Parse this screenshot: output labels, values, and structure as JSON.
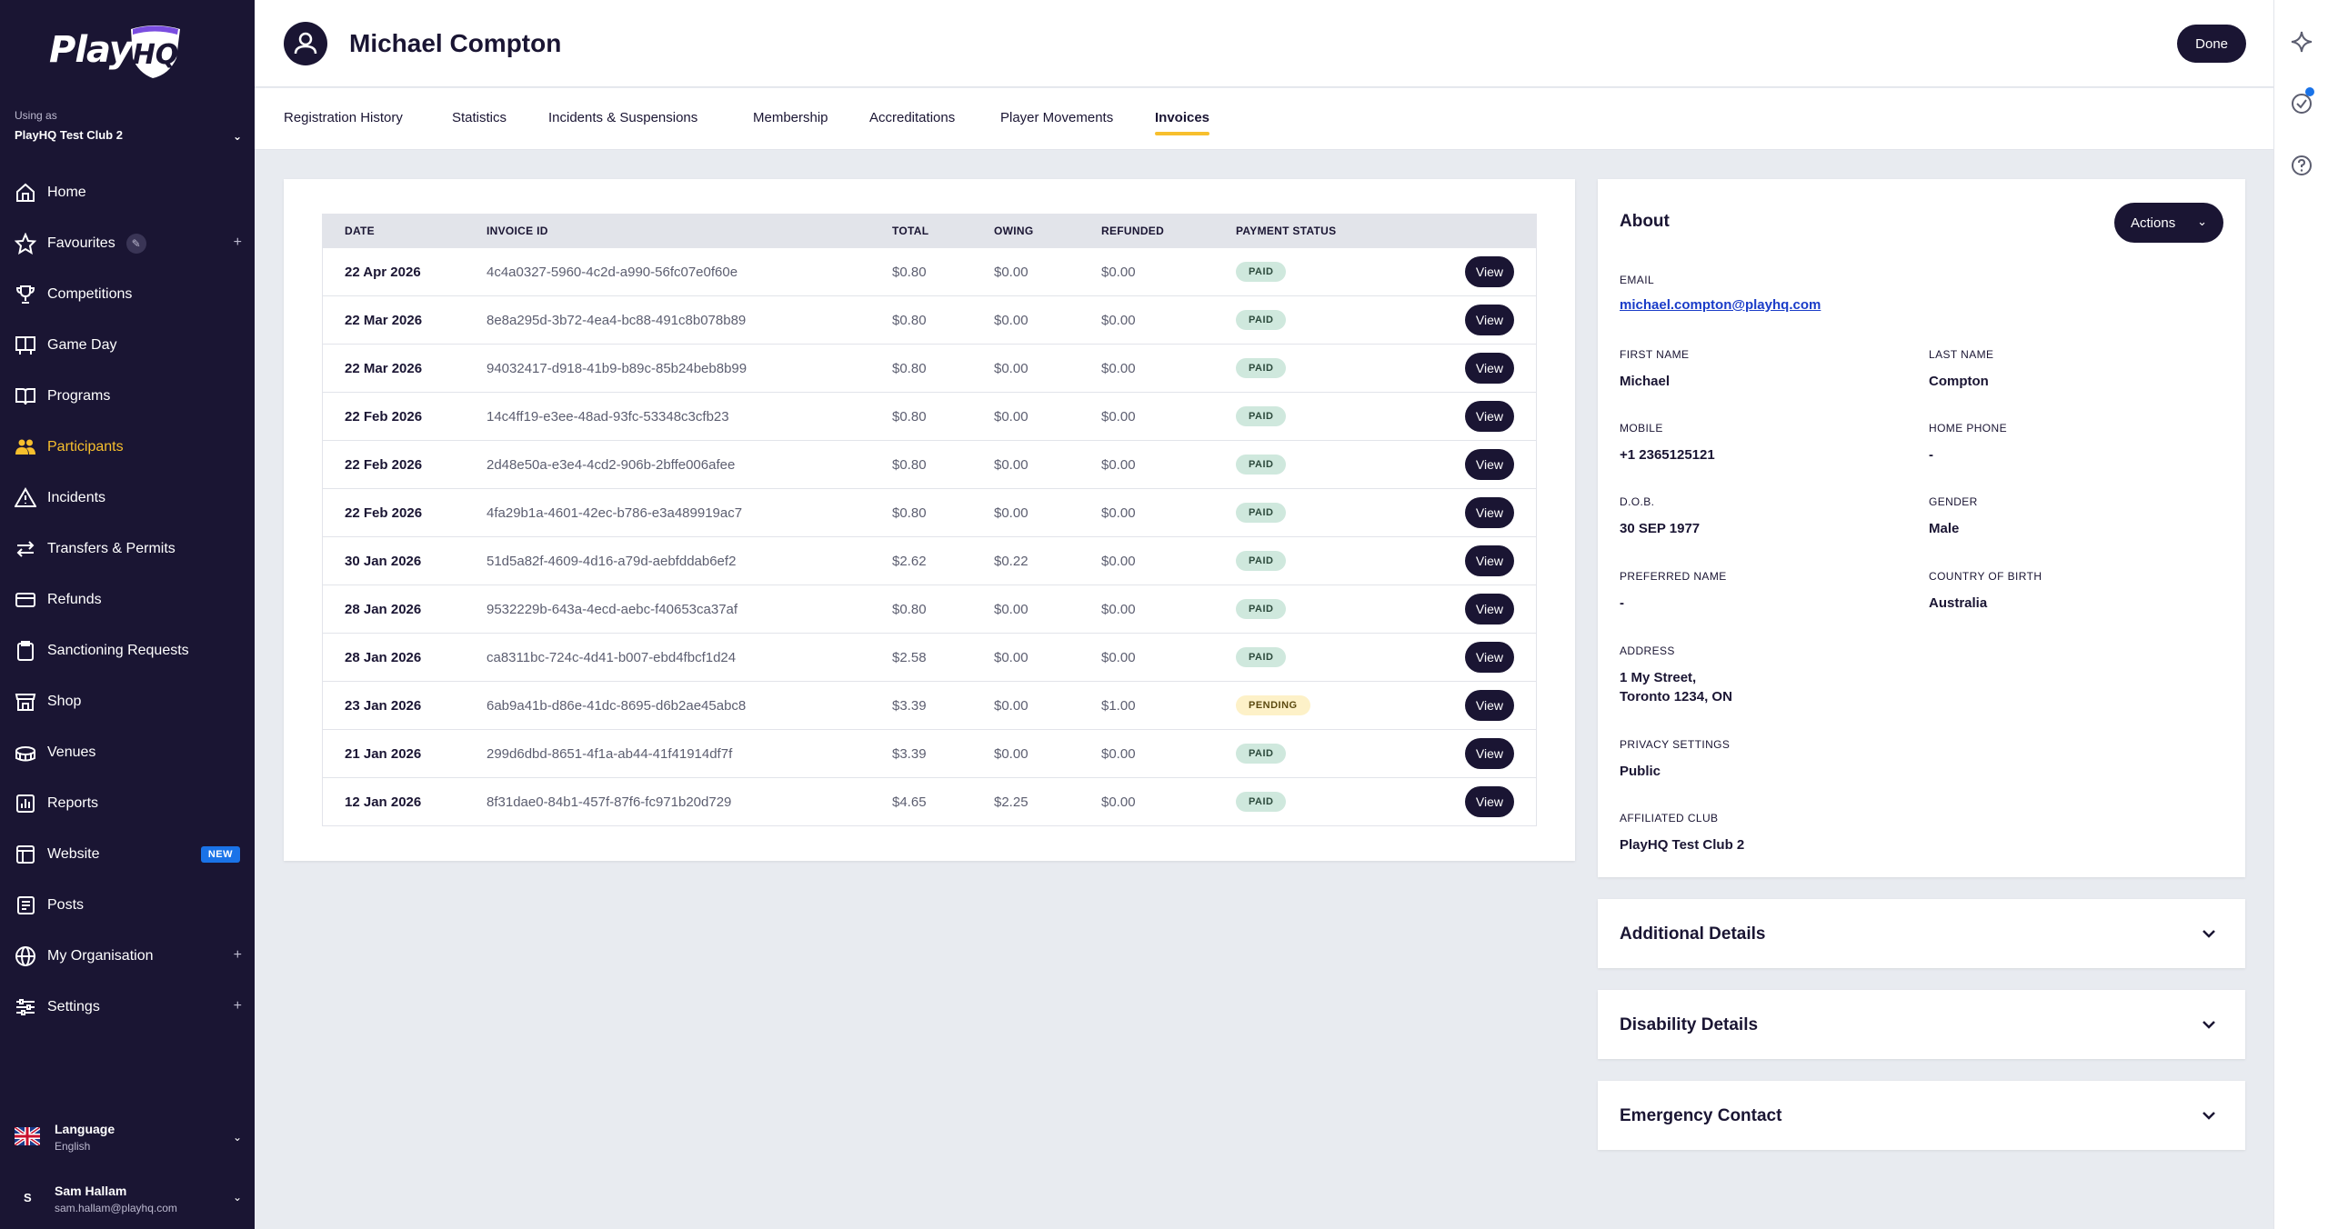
{
  "sidebar": {
    "logo_text": "Play",
    "logo_badge": "HQ",
    "using_as_label": "Using as",
    "club": "PlayHQ Test Club 2",
    "items": [
      {
        "label": "Home",
        "icon": "home-icon"
      },
      {
        "label": "Favourites",
        "icon": "star-icon"
      },
      {
        "label": "Competitions",
        "icon": "trophy-icon"
      },
      {
        "label": "Game Day",
        "icon": "scoreboard-icon"
      },
      {
        "label": "Programs",
        "icon": "book-icon"
      },
      {
        "label": "Participants",
        "icon": "people-icon"
      },
      {
        "label": "Incidents",
        "icon": "warning-icon"
      },
      {
        "label": "Transfers & Permits",
        "icon": "transfer-icon"
      },
      {
        "label": "Refunds",
        "icon": "card-icon"
      },
      {
        "label": "Sanctioning Requests",
        "icon": "clipboard-icon"
      },
      {
        "label": "Shop",
        "icon": "shop-icon"
      },
      {
        "label": "Venues",
        "icon": "stadium-icon"
      },
      {
        "label": "Reports",
        "icon": "reports-icon"
      },
      {
        "label": "Website",
        "icon": "website-icon",
        "badge": "NEW"
      },
      {
        "label": "Posts",
        "icon": "posts-icon"
      },
      {
        "label": "My Organisation",
        "icon": "globe-icon"
      },
      {
        "label": "Settings",
        "icon": "sliders-icon"
      }
    ],
    "language_label": "Language",
    "language_value": "English",
    "user_initial": "S",
    "user_name": "Sam Hallam",
    "user_email": "sam.hallam@playhq.com"
  },
  "header": {
    "title": "Michael Compton",
    "done_label": "Done"
  },
  "tabs": [
    "Registration History",
    "Statistics",
    "Incidents & Suspensions",
    "Membership",
    "Accreditations",
    "Player Movements",
    "Invoices"
  ],
  "invoices": {
    "columns": [
      "DATE",
      "INVOICE ID",
      "TOTAL",
      "OWING",
      "REFUNDED",
      "PAYMENT STATUS"
    ],
    "view_label": "View",
    "rows": [
      {
        "date": "22 Apr 2026",
        "id": "4c4a0327-5960-4c2d-a990-56fc07e0f60e",
        "total": "$0.80",
        "owing": "$0.00",
        "refunded": "$0.00",
        "status": "PAID"
      },
      {
        "date": "22 Mar 2026",
        "id": "8e8a295d-3b72-4ea4-bc88-491c8b078b89",
        "total": "$0.80",
        "owing": "$0.00",
        "refunded": "$0.00",
        "status": "PAID"
      },
      {
        "date": "22 Mar 2026",
        "id": "94032417-d918-41b9-b89c-85b24beb8b99",
        "total": "$0.80",
        "owing": "$0.00",
        "refunded": "$0.00",
        "status": "PAID"
      },
      {
        "date": "22 Feb 2026",
        "id": "14c4ff19-e3ee-48ad-93fc-53348c3cfb23",
        "total": "$0.80",
        "owing": "$0.00",
        "refunded": "$0.00",
        "status": "PAID"
      },
      {
        "date": "22 Feb 2026",
        "id": "2d48e50a-e3e4-4cd2-906b-2bffe006afee",
        "total": "$0.80",
        "owing": "$0.00",
        "refunded": "$0.00",
        "status": "PAID"
      },
      {
        "date": "22 Feb 2026",
        "id": "4fa29b1a-4601-42ec-b786-e3a489919ac7",
        "total": "$0.80",
        "owing": "$0.00",
        "refunded": "$0.00",
        "status": "PAID"
      },
      {
        "date": "30 Jan 2026",
        "id": "51d5a82f-4609-4d16-a79d-aebfddab6ef2",
        "total": "$2.62",
        "owing": "$0.22",
        "refunded": "$0.00",
        "status": "PAID"
      },
      {
        "date": "28 Jan 2026",
        "id": "9532229b-643a-4ecd-aebc-f40653ca37af",
        "total": "$0.80",
        "owing": "$0.00",
        "refunded": "$0.00",
        "status": "PAID"
      },
      {
        "date": "28 Jan 2026",
        "id": "ca8311bc-724c-4d41-b007-ebd4fbcf1d24",
        "total": "$2.58",
        "owing": "$0.00",
        "refunded": "$0.00",
        "status": "PAID"
      },
      {
        "date": "23 Jan 2026",
        "id": "6ab9a41b-d86e-41dc-8695-d6b2ae45abc8",
        "total": "$3.39",
        "owing": "$0.00",
        "refunded": "$1.00",
        "status": "PENDING"
      },
      {
        "date": "21 Jan 2026",
        "id": "299d6dbd-8651-4f1a-ab44-41f41914df7f",
        "total": "$3.39",
        "owing": "$0.00",
        "refunded": "$0.00",
        "status": "PAID"
      },
      {
        "date": "12 Jan 2026",
        "id": "8f31dae0-84b1-457f-87f6-fc971b20d729",
        "total": "$4.65",
        "owing": "$2.25",
        "refunded": "$0.00",
        "status": "PAID"
      }
    ]
  },
  "about": {
    "title": "About",
    "actions_label": "Actions",
    "email_label": "EMAIL",
    "email": "michael.compton@playhq.com",
    "first_name_label": "FIRST NAME",
    "first_name": "Michael",
    "last_name_label": "LAST NAME",
    "last_name": "Compton",
    "mobile_label": "MOBILE",
    "mobile": "+1 2365125121",
    "home_phone_label": "HOME PHONE",
    "home_phone": "-",
    "dob_label": "D.O.B.",
    "dob": "30 SEP 1977",
    "gender_label": "GENDER",
    "gender": "Male",
    "preferred_name_label": "PREFERRED NAME",
    "preferred_name": "-",
    "country_label": "COUNTRY OF BIRTH",
    "country": "Australia",
    "address_label": "ADDRESS",
    "address_line1": "1 My Street,",
    "address_line2": "Toronto 1234, ON",
    "privacy_label": "PRIVACY SETTINGS",
    "privacy": "Public",
    "club_label": "AFFILIATED CLUB",
    "club": "PlayHQ Test Club 2"
  },
  "accordions": [
    "Additional Details",
    "Disability Details",
    "Emergency Contact"
  ],
  "colors": {
    "sidebar_bg": "#1a1533",
    "accent": "#f7bf2d",
    "paid_bg": "#cfe8dd",
    "pending_bg": "#fdf1c8",
    "link": "#1a3cc8"
  }
}
